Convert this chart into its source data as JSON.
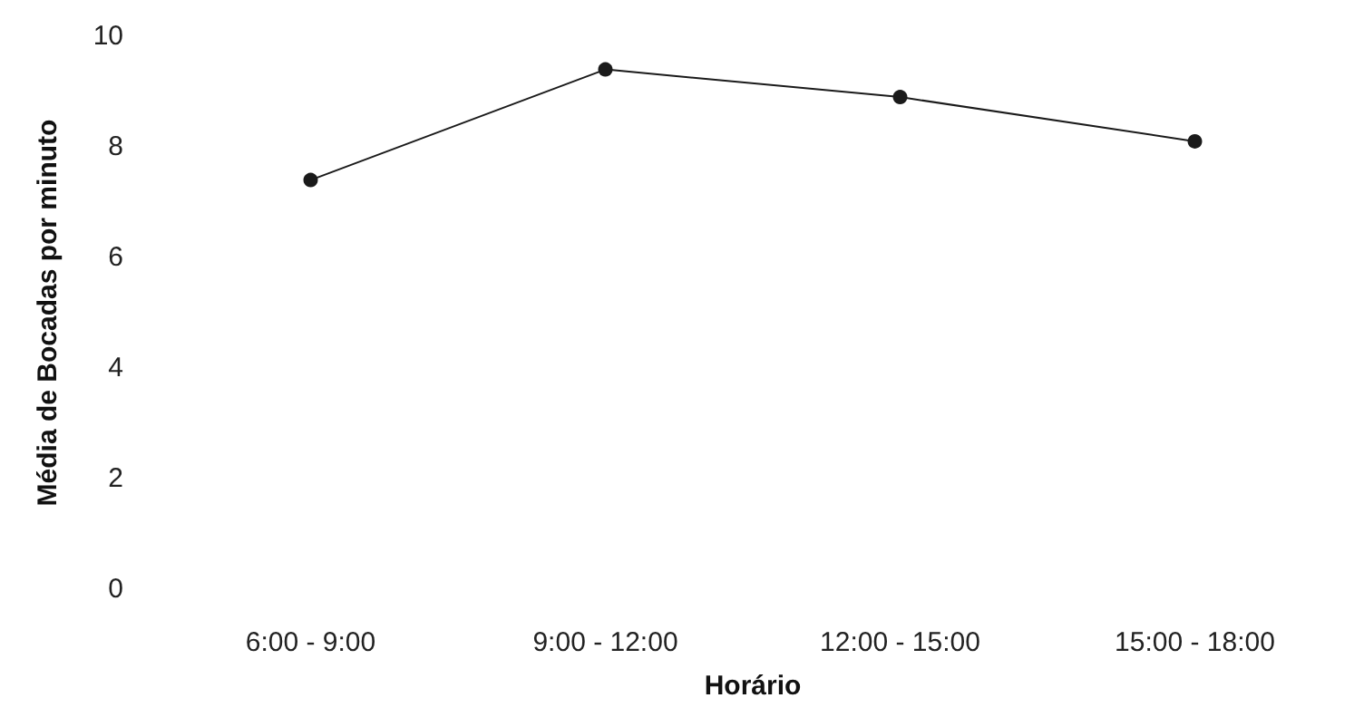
{
  "chart_data": {
    "type": "line",
    "xlabel": "Horário",
    "ylabel": "Média de Bocadas por minuto",
    "categories": [
      "6:00 - 9:00",
      "9:00 - 12:00",
      "12:00 - 15:00",
      "15:00 - 18:00"
    ],
    "series": [
      {
        "color": "#1a1a1a",
        "values": [
          7.4,
          9.4,
          8.9,
          8.1
        ]
      }
    ],
    "ylim": [
      0,
      10
    ],
    "yticks": [
      0,
      2,
      4,
      6,
      8,
      10
    ],
    "marker": "circle",
    "line_style": "solid"
  }
}
